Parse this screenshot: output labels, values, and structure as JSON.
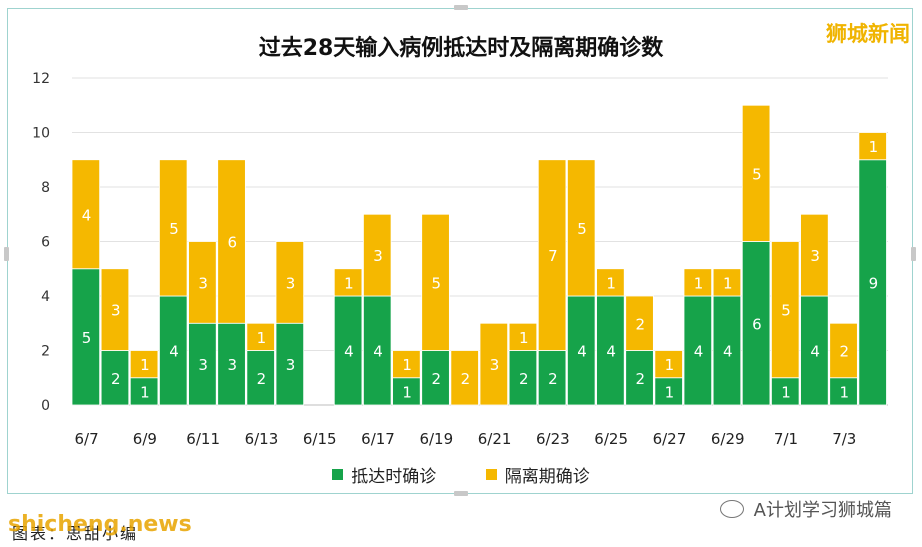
{
  "watermark": "狮城新闻",
  "source_text": "图表：思甜小编",
  "site_watermark": "shicheng.news",
  "channel_name": "A计划学习狮城篇",
  "colors": {
    "green": "#16a34a",
    "yellow": "#f5b800",
    "grid": "#e2e2e2"
  },
  "chart_data": {
    "type": "bar",
    "stacked": true,
    "title": "过去28天输入病例抵达时及隔离期确诊数",
    "categories": [
      "6/7",
      "6/8",
      "6/9",
      "6/10",
      "6/11",
      "6/12",
      "6/13",
      "6/14",
      "6/15",
      "6/16",
      "6/17",
      "6/18",
      "6/19",
      "6/20",
      "6/21",
      "6/22",
      "6/23",
      "6/24",
      "6/25",
      "6/26",
      "6/27",
      "6/28",
      "6/29",
      "6/30",
      "7/1",
      "7/2",
      "7/3",
      "7/4"
    ],
    "tick_labels": [
      "6/7",
      "6/9",
      "6/11",
      "6/13",
      "6/15",
      "6/17",
      "6/19",
      "6/21",
      "6/23",
      "6/25",
      "6/27",
      "6/29",
      "7/1",
      "7/3"
    ],
    "ylim": [
      0,
      12
    ],
    "yticks": [
      0,
      2,
      4,
      6,
      8,
      10,
      12
    ],
    "grid": true,
    "legend_position": "bottom",
    "series": [
      {
        "name": "抵达时确诊",
        "color": "#16a34a",
        "values": [
          5,
          2,
          1,
          4,
          3,
          3,
          2,
          3,
          0,
          4,
          4,
          1,
          2,
          0,
          0,
          2,
          2,
          4,
          4,
          2,
          1,
          4,
          4,
          6,
          1,
          4,
          1,
          9
        ]
      },
      {
        "name": "隔离期确诊",
        "color": "#f5b800",
        "values": [
          4,
          3,
          1,
          5,
          3,
          6,
          1,
          3,
          0,
          1,
          3,
          1,
          5,
          2,
          3,
          1,
          7,
          5,
          1,
          2,
          1,
          1,
          1,
          5,
          5,
          3,
          2,
          1
        ]
      }
    ]
  }
}
